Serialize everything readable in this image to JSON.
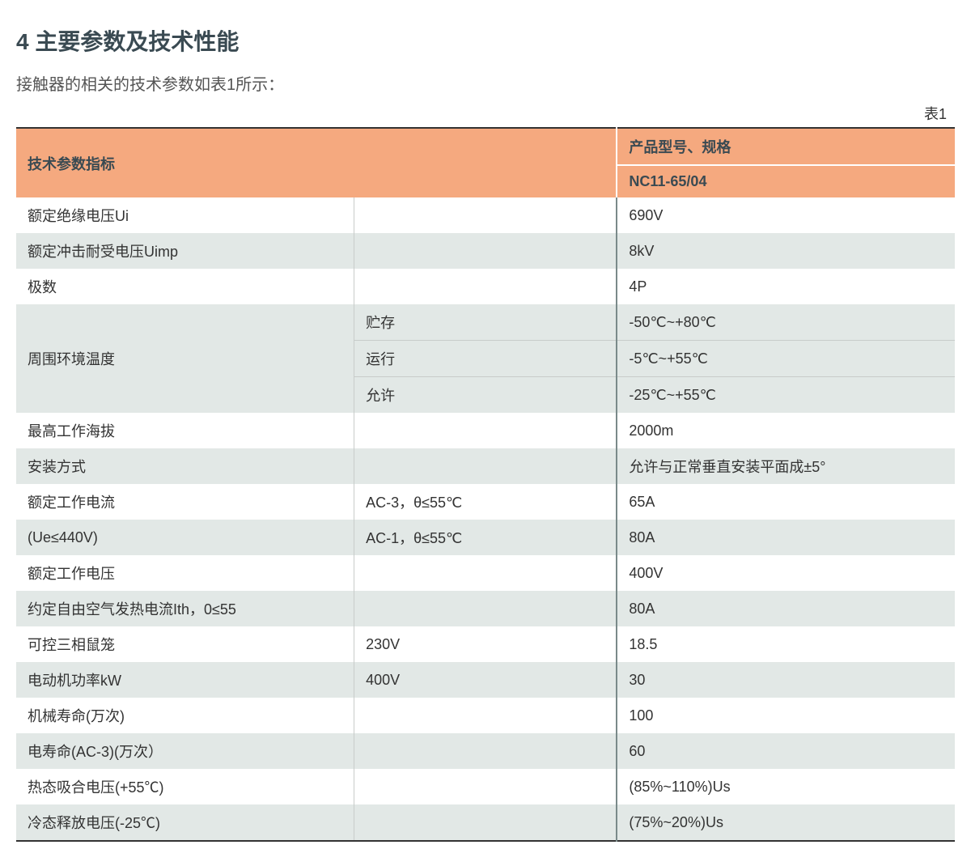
{
  "colors": {
    "header_bg": "#f5a97f",
    "header_text": "#3a4a52",
    "row_alt_bg": "#e2e8e6",
    "row_bg": "#ffffff",
    "divider_light": "#c8ccca",
    "divider_strong": "#7a8a8a",
    "border_outer": "#333333",
    "title_color": "#3a4a52",
    "intro_color": "#555555"
  },
  "typography": {
    "title_fontsize": 28,
    "intro_fontsize": 20,
    "table_fontsize": 18,
    "caption_fontsize": 18
  },
  "layout": {
    "col1_width_pct": 36,
    "col2_width_pct": 28,
    "col3_width_pct": 36
  },
  "title": "4 主要参数及技术性能",
  "intro": "接触器的相关的技术参数如表1所示：",
  "caption": "表1",
  "header": {
    "left": "技术参数指标",
    "right_top": "产品型号、规格",
    "right_sub": "NC11-65/04"
  },
  "rows": [
    {
      "stripe": "a",
      "c1": "额定绝缘电压Ui",
      "c2": "",
      "c3": "690V"
    },
    {
      "stripe": "b",
      "c1": "额定冲击耐受电压Uimp",
      "c2": "",
      "c3": "8kV"
    },
    {
      "stripe": "a",
      "c1": "极数",
      "c2": "",
      "c3": "4P"
    },
    {
      "stripe": "b",
      "c1_rowspan": 3,
      "c1": "周围环境温度",
      "c2": "贮存",
      "c3": "-50℃~+80℃"
    },
    {
      "stripe": "b",
      "c2": "运行",
      "c3": "-5℃~+55℃",
      "sub_border": true
    },
    {
      "stripe": "b",
      "c2": "允许",
      "c3": "-25℃~+55℃",
      "sub_border": true
    },
    {
      "stripe": "a",
      "c1": "最高工作海拔",
      "c2": "",
      "c3": "2000m"
    },
    {
      "stripe": "b",
      "c1": "安装方式",
      "c2": "",
      "c3": "允许与正常垂直安装平面成±5°"
    },
    {
      "stripe": "a",
      "c1": "额定工作电流",
      "c2": "AC-3，θ≤55℃",
      "c3": "65A"
    },
    {
      "stripe": "b",
      "c1": "(Ue≤440V)",
      "c2": "AC-1，θ≤55℃",
      "c3": "80A"
    },
    {
      "stripe": "a",
      "c1": "额定工作电压",
      "c2": "",
      "c3": "400V"
    },
    {
      "stripe": "b",
      "c1": "约定自由空气发热电流Ith，0≤55",
      "c2": "",
      "c3": "80A"
    },
    {
      "stripe": "a",
      "c1": "可控三相鼠笼",
      "c2": "230V",
      "c3": "18.5"
    },
    {
      "stripe": "b",
      "c1": "电动机功率kW",
      "c2": "400V",
      "c3": "30"
    },
    {
      "stripe": "a",
      "c1": "机械寿命(万次)",
      "c2": "",
      "c3": "100"
    },
    {
      "stripe": "b",
      "c1": "电寿命(AC-3)(万次）",
      "c2": "",
      "c3": "60"
    },
    {
      "stripe": "a",
      "c1": "热态吸合电压(+55℃)",
      "c2": "",
      "c3": "(85%~110%)Us"
    },
    {
      "stripe": "b",
      "c1": "冷态释放电压(-25℃)",
      "c2": "",
      "c3": "(75%~20%)Us"
    }
  ]
}
